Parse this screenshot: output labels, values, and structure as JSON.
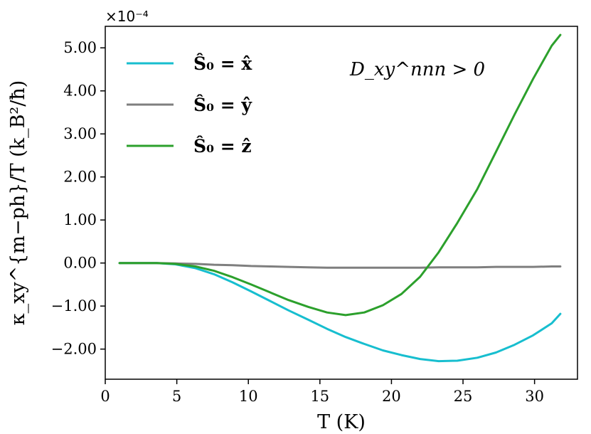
{
  "chart_data": {
    "type": "line",
    "xlabel": "T (K)",
    "ylabel": "κ_xy^{m−ph}/T (k_B²/ħ)",
    "y_offset_label": "×10⁻⁴",
    "annotation": "D_xy^nnn > 0",
    "xlim": [
      0,
      33
    ],
    "ylim": [
      -2.7,
      5.5
    ],
    "xticks": [
      0,
      5,
      10,
      15,
      20,
      25,
      30
    ],
    "xtick_labels": [
      "0",
      "5",
      "10",
      "15",
      "20",
      "25",
      "30"
    ],
    "yticks": [
      -2,
      -1,
      0,
      1,
      2,
      3,
      4,
      5
    ],
    "ytick_labels": [
      "−2.00",
      "−1.00",
      "0.00",
      "1.00",
      "2.00",
      "3.00",
      "4.00",
      "5.00"
    ],
    "legend_position": "top-left",
    "grid": false,
    "x": [
      1.0,
      2.3,
      3.6,
      4.9,
      6.3,
      7.6,
      8.9,
      10.2,
      11.5,
      12.8,
      14.2,
      15.5,
      16.8,
      18.1,
      19.4,
      20.7,
      22.0,
      23.3,
      24.6,
      26.0,
      27.3,
      28.6,
      29.9,
      31.2,
      31.8
    ],
    "series": [
      {
        "name": "Ŝ₀ = x̂",
        "color": "#17becf",
        "values": [
          0.0,
          0.0,
          0.0,
          -0.03,
          -0.12,
          -0.26,
          -0.45,
          -0.66,
          -0.88,
          -1.1,
          -1.32,
          -1.53,
          -1.72,
          -1.88,
          -2.03,
          -2.14,
          -2.23,
          -2.28,
          -2.27,
          -2.2,
          -2.08,
          -1.9,
          -1.68,
          -1.4,
          -1.18
        ]
      },
      {
        "name": "Ŝ₀ = ŷ",
        "color": "#7f7f7f",
        "values": [
          0.0,
          0.0,
          0.0,
          -0.01,
          -0.02,
          -0.04,
          -0.05,
          -0.07,
          -0.08,
          -0.09,
          -0.1,
          -0.11,
          -0.11,
          -0.11,
          -0.11,
          -0.11,
          -0.11,
          -0.1,
          -0.1,
          -0.1,
          -0.09,
          -0.09,
          -0.09,
          -0.08,
          -0.08
        ]
      },
      {
        "name": "Ŝ₀ = ẑ",
        "color": "#2ca02c",
        "values": [
          0.0,
          0.0,
          0.0,
          -0.02,
          -0.08,
          -0.18,
          -0.33,
          -0.5,
          -0.68,
          -0.86,
          -1.02,
          -1.15,
          -1.21,
          -1.15,
          -0.98,
          -0.72,
          -0.32,
          0.25,
          0.93,
          1.72,
          2.58,
          3.45,
          4.28,
          5.05,
          5.3
        ]
      }
    ]
  }
}
